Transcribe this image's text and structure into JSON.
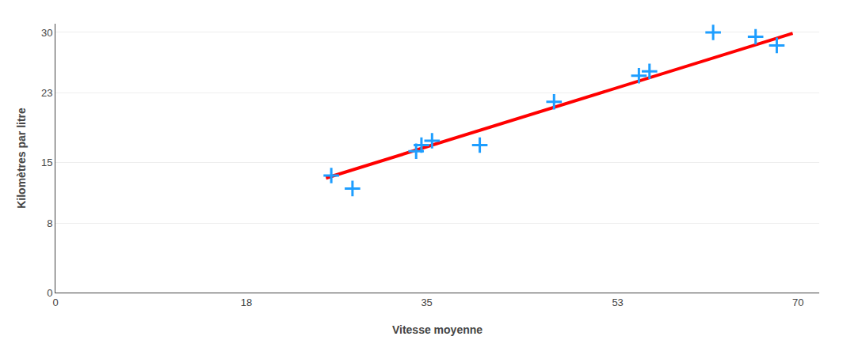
{
  "chart_data": {
    "type": "scatter",
    "xlabel": "Vitesse moyenne",
    "ylabel": "Kilomètres par litre",
    "series": [
      {
        "type": "line",
        "color": "#FF0000",
        "line_style": "solid",
        "x": [
          25.5,
          69.5
        ],
        "values": [
          13.2,
          29.9
        ]
      },
      {
        "type": "scatter",
        "color": "#1E9EFF",
        "marker": "plus",
        "x": [
          26,
          28,
          34,
          34.5,
          35.5,
          40,
          47,
          55,
          56,
          62,
          66,
          68
        ],
        "values": [
          13.5,
          12.0,
          16.3,
          17.0,
          17.5,
          17.0,
          22.0,
          25.0,
          25.5,
          30.0,
          29.5,
          28.5
        ]
      }
    ],
    "xlim": [
      0,
      72
    ],
    "xticks": [
      0,
      18,
      35,
      53,
      70
    ],
    "ylim": [
      0,
      31
    ],
    "yticks": [
      0,
      8,
      15,
      23,
      30
    ],
    "grid": "y"
  }
}
